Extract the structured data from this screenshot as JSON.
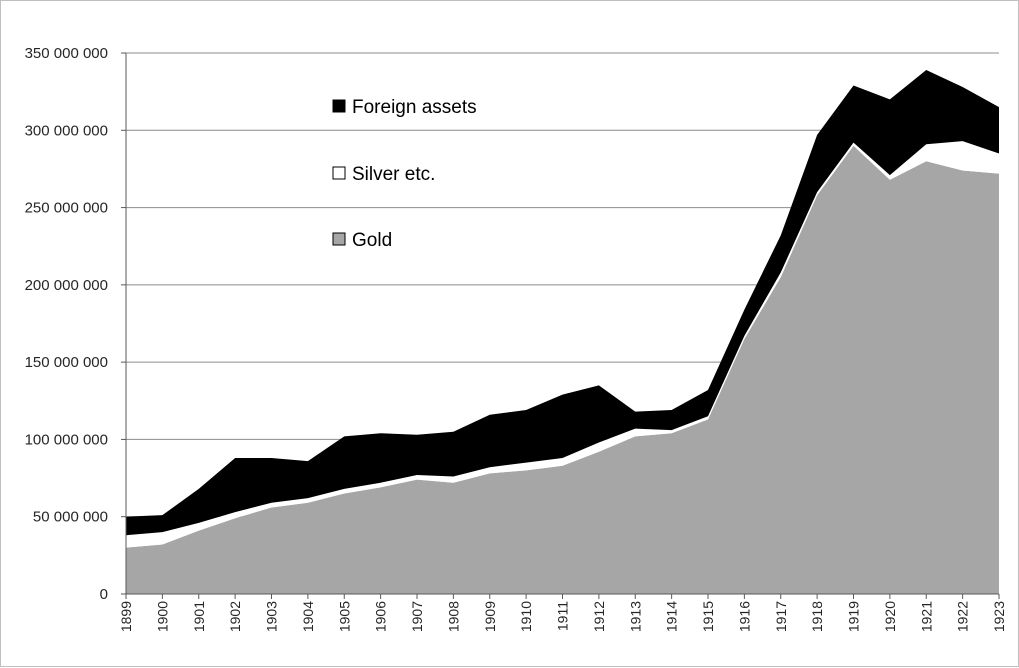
{
  "chart_data": {
    "type": "area",
    "stacked": true,
    "title": "",
    "xlabel": "",
    "ylabel": "",
    "x": [
      "1899",
      "1900",
      "1901",
      "1902",
      "1903",
      "1904",
      "1905",
      "1906",
      "1907",
      "1908",
      "1909",
      "1910",
      "1911",
      "1912",
      "1913",
      "1914",
      "1915",
      "1916",
      "1917",
      "1918",
      "1919",
      "1920",
      "1921",
      "1922",
      "1923"
    ],
    "ylim": [
      0,
      350000000
    ],
    "yticks": [
      0,
      50000000,
      100000000,
      150000000,
      200000000,
      250000000,
      300000000,
      350000000
    ],
    "ytick_labels": [
      "0",
      "50 000 000",
      "100 000 000",
      "150 000 000",
      "200 000 000",
      "250 000 000",
      "300 000 000",
      "350 000 000"
    ],
    "grid": true,
    "legend_position": "top-left inside plot",
    "series": [
      {
        "name": "Gold",
        "color": "#a6a6a6",
        "values": [
          30000000,
          32000000,
          41000000,
          49000000,
          56000000,
          59000000,
          65000000,
          69000000,
          74000000,
          72000000,
          78000000,
          80000000,
          83000000,
          92000000,
          102000000,
          104000000,
          113000000,
          165000000,
          205000000,
          258000000,
          290000000,
          268000000,
          280000000,
          274000000,
          272000000
        ]
      },
      {
        "name": "Silver etc.",
        "color": "#ffffff",
        "values": [
          8000000,
          8000000,
          5000000,
          4000000,
          3000000,
          3000000,
          3000000,
          3000000,
          3000000,
          4000000,
          4000000,
          5000000,
          5000000,
          6000000,
          5000000,
          2000000,
          2000000,
          2000000,
          3000000,
          2000000,
          2000000,
          3000000,
          11000000,
          19000000,
          13000000
        ]
      },
      {
        "name": "Foreign assets",
        "color": "#000000",
        "values": [
          12000000,
          11000000,
          22000000,
          35000000,
          29000000,
          24000000,
          34000000,
          32000000,
          26000000,
          29000000,
          34000000,
          34000000,
          41000000,
          37000000,
          11000000,
          13000000,
          17000000,
          17000000,
          24000000,
          37000000,
          37000000,
          49000000,
          48000000,
          35000000,
          30000000
        ]
      }
    ],
    "legend": [
      {
        "label": "Foreign assets",
        "color": "#000000"
      },
      {
        "label": "Silver etc.",
        "color": "#ffffff"
      },
      {
        "label": "Gold",
        "color": "#a6a6a6"
      }
    ]
  }
}
